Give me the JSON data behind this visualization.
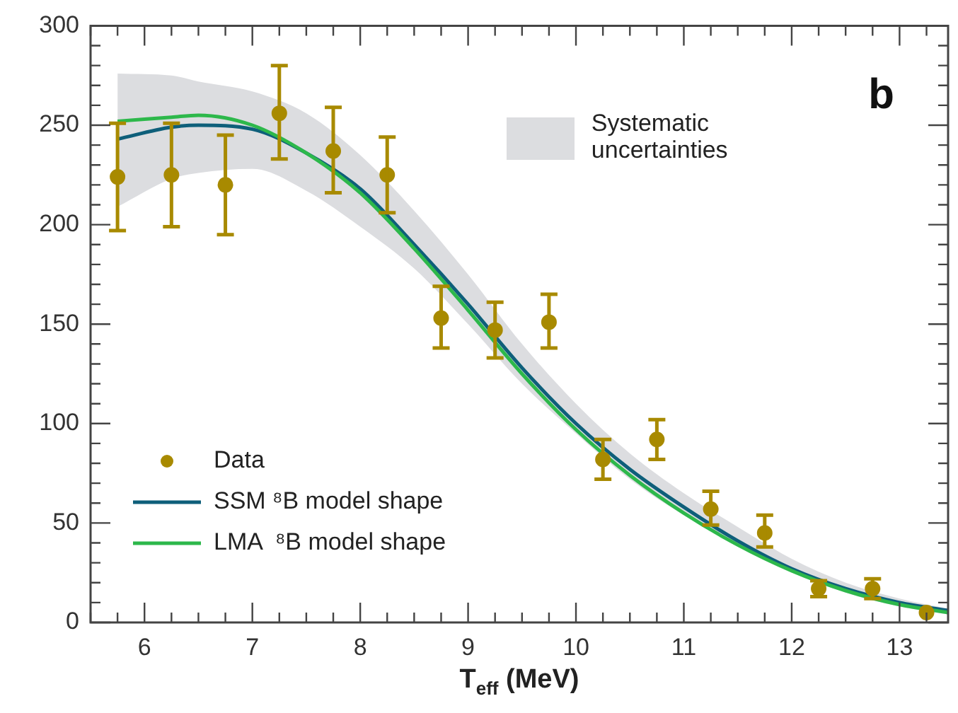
{
  "chart_data": {
    "type": "line",
    "xlabel": "T$_{eff}$ (MeV)",
    "annotations": [
      "b",
      "Systematic uncertainties"
    ],
    "xlim": [
      5.5,
      13.45
    ],
    "xticks": [
      6,
      7,
      8,
      9,
      10,
      11,
      12,
      13
    ],
    "ylim": [
      0,
      300
    ],
    "yticks": [
      0,
      50,
      100,
      150,
      200,
      250,
      300
    ],
    "grid": false,
    "legend": "bottom left",
    "series": [
      {
        "name": "Data",
        "type": "scatter",
        "marker": "circle",
        "color": "#a88a00",
        "x": [
          5.75,
          6.25,
          6.75,
          7.25,
          7.75,
          8.25,
          8.75,
          9.25,
          9.75,
          10.25,
          10.75,
          11.25,
          11.75,
          12.25,
          12.75,
          13.25
        ],
        "values": [
          224,
          225,
          220,
          256,
          237,
          225,
          153,
          147,
          151,
          82,
          92,
          57,
          45,
          17,
          17,
          5
        ],
        "errors": [
          [
            197,
            251
          ],
          [
            199,
            251
          ],
          [
            195,
            245
          ],
          [
            233,
            280
          ],
          [
            216,
            259
          ],
          [
            206,
            244
          ],
          [
            138,
            169
          ],
          [
            133,
            161
          ],
          [
            138,
            165
          ],
          [
            72,
            92
          ],
          [
            82,
            102
          ],
          [
            49,
            66
          ],
          [
            38,
            54
          ],
          [
            13,
            21
          ],
          [
            12,
            22
          ],
          null
        ]
      },
      {
        "name": "SSM ⁸B model shape",
        "color": "#0e5f7a",
        "x": [
          5.75,
          6.25,
          6.5,
          7,
          7.5,
          8,
          8.5,
          9,
          9.5,
          10,
          10.5,
          11,
          11.5,
          12,
          12.5,
          13,
          13.45
        ],
        "values": [
          243,
          249,
          250,
          248,
          236,
          218,
          190,
          160,
          128,
          100,
          77,
          58,
          41,
          27,
          17,
          10,
          6
        ],
        "lower": [
          209,
          223,
          226,
          228,
          217,
          199,
          178,
          150,
          120,
          95,
          72,
          54,
          40,
          26,
          15,
          8,
          4
        ],
        "upper": [
          276,
          275,
          272,
          267,
          256,
          235,
          207,
          175,
          140,
          110,
          85,
          65,
          48,
          32,
          20,
          12,
          7
        ]
      },
      {
        "name": "LMA  ⁸B model shape",
        "color": "#2db84b",
        "x": [
          5.75,
          6.25,
          6.5,
          7,
          7.5,
          8,
          8.5,
          9,
          9.5,
          10,
          10.5,
          11,
          11.5,
          12,
          12.5,
          13,
          13.45
        ],
        "values": [
          252,
          254,
          255,
          250,
          236,
          216,
          188,
          157,
          125,
          97,
          74,
          55,
          39,
          26,
          16,
          9,
          5
        ]
      }
    ]
  }
}
